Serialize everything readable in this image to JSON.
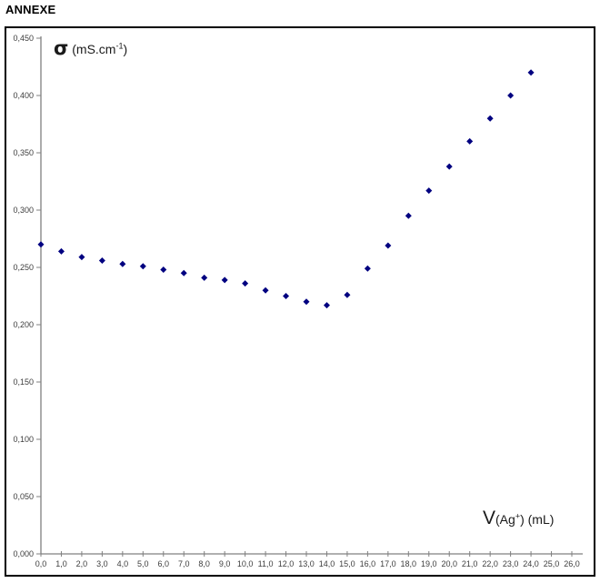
{
  "page": {
    "title": "ANNEXE"
  },
  "chart_data": {
    "type": "scatter",
    "title": "",
    "x": [
      0.0,
      1.0,
      2.0,
      3.0,
      4.0,
      5.0,
      6.0,
      7.0,
      8.0,
      9.0,
      10.0,
      11.0,
      12.0,
      13.0,
      14.0,
      15.0,
      16.0,
      17.0,
      18.0,
      19.0,
      20.0,
      21.0,
      22.0,
      23.0,
      24.0
    ],
    "y": [
      0.27,
      0.264,
      0.259,
      0.256,
      0.253,
      0.251,
      0.248,
      0.245,
      0.241,
      0.239,
      0.236,
      0.23,
      0.225,
      0.22,
      0.217,
      0.226,
      0.249,
      0.269,
      0.295,
      0.317,
      0.338,
      0.36,
      0.38,
      0.4,
      0.42
    ],
    "xlim": [
      0.0,
      26.0
    ],
    "ylim": [
      0.0,
      0.45
    ],
    "x_tick_step": 1.0,
    "y_tick_step": 0.05,
    "x_tick_labels": [
      "0,0",
      "1,0",
      "2,0",
      "3,0",
      "4,0",
      "5,0",
      "6,0",
      "7,0",
      "8,0",
      "9,0",
      "10,0",
      "11,0",
      "12,0",
      "13,0",
      "14,0",
      "15,0",
      "16,0",
      "17,0",
      "18,0",
      "19,0",
      "20,0",
      "21,0",
      "22,0",
      "23,0",
      "24,0",
      "25,0",
      "26,0"
    ],
    "y_tick_labels": [
      "0,000",
      "0,050",
      "0,100",
      "0,150",
      "0,200",
      "0,250",
      "0,300",
      "0,350",
      "0,400",
      "0,450"
    ],
    "ylabel": "σ (mS.cm-1)",
    "xlabel": "V(Ag+) (mL)",
    "ylabel_parts": {
      "symbol": "σ",
      "unit_prefix": " (mS.cm",
      "unit_sup": "-1",
      "unit_suffix": ")"
    },
    "xlabel_parts": {
      "symbol": "V",
      "prefix": "(Ag",
      "sup": "+",
      "suffix": ") (mL)"
    },
    "grid": false,
    "legend": "none",
    "decimal_separator": ",",
    "marker": {
      "shape": "diamond",
      "color": "#000080",
      "size": 7
    },
    "colors": {
      "axis": "#808080",
      "tick_label": "#3d3d3d",
      "frame": "#000000",
      "background": "#ffffff"
    }
  }
}
